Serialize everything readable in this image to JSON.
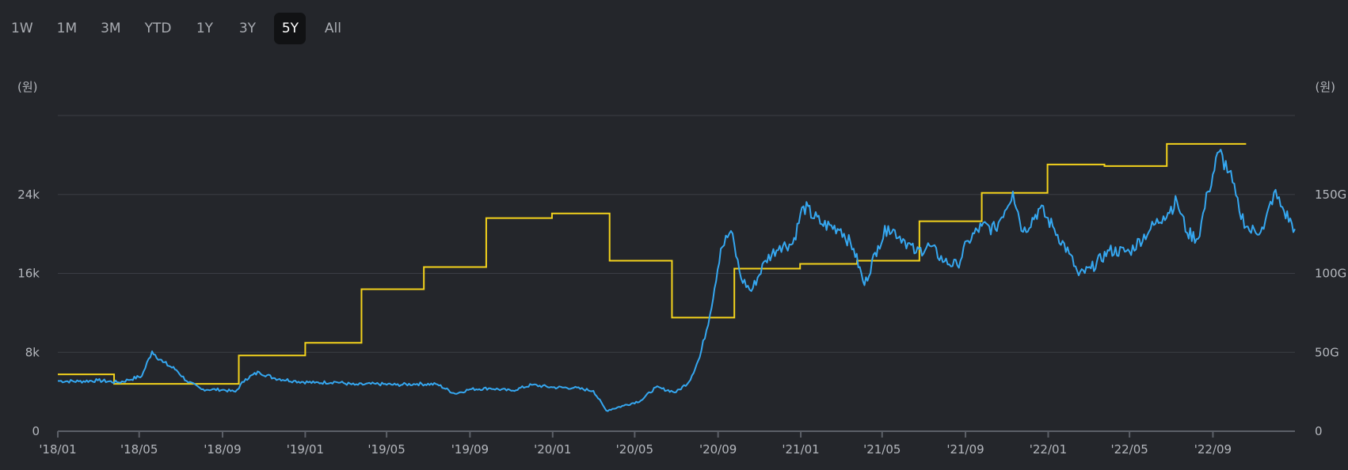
{
  "range_buttons": [
    {
      "label": "1W",
      "active": false
    },
    {
      "label": "1M",
      "active": false
    },
    {
      "label": "3M",
      "active": false
    },
    {
      "label": "YTD",
      "active": false
    },
    {
      "label": "1Y",
      "active": false
    },
    {
      "label": "3Y",
      "active": false
    },
    {
      "label": "5Y",
      "active": true
    },
    {
      "label": "All",
      "active": false
    }
  ],
  "chart_data": {
    "type": "line",
    "left_unit": "(원)",
    "right_unit": "(원)",
    "y_left": {
      "min": 0,
      "max": 32000,
      "ticks": [
        0,
        8000,
        16000,
        24000
      ],
      "tick_labels": [
        "0",
        "8k",
        "16k",
        "24k"
      ]
    },
    "y_right": {
      "min": 0,
      "max": 200,
      "ticks": [
        0,
        50,
        100,
        150
      ],
      "tick_labels": [
        "0",
        "50G",
        "100G",
        "150G"
      ]
    },
    "x_range": [
      "2018-01",
      "2022-12-31"
    ],
    "x_ticks": [
      "2018-01",
      "2018-05",
      "2018-09",
      "2019-01",
      "2019-05",
      "2019-09",
      "2020-01",
      "2020-05",
      "2020-09",
      "2021-01",
      "2021-05",
      "2021-09",
      "2022-01",
      "2022-05",
      "2022-09"
    ],
    "x_tick_labels": [
      "'18/01",
      "'18/05",
      "'18/09",
      "'19/01",
      "'19/05",
      "'19/09",
      "'20/01",
      "'20/05",
      "'20/09",
      "'21/01",
      "'21/05",
      "'21/09",
      "'22/01",
      "'22/05",
      "'22/09"
    ],
    "grid": true,
    "colors": {
      "price": "#35a7f0",
      "step": "#f3d21c",
      "grid": "#3b3e45",
      "axis": "#5c6068"
    },
    "series": [
      {
        "axis": "left",
        "color": "#35a7f0",
        "points": [
          [
            "2018-01-01",
            5100
          ],
          [
            "2018-02-01",
            5050
          ],
          [
            "2018-03-01",
            5150
          ],
          [
            "2018-04-01",
            4950
          ],
          [
            "2018-04-15",
            5200
          ],
          [
            "2018-05-05",
            5600
          ],
          [
            "2018-05-20",
            8100
          ],
          [
            "2018-06-05",
            7000
          ],
          [
            "2018-06-25",
            6200
          ],
          [
            "2018-07-10",
            5100
          ],
          [
            "2018-08-01",
            4250
          ],
          [
            "2018-09-01",
            4200
          ],
          [
            "2018-09-20",
            4000
          ],
          [
            "2018-10-05",
            5300
          ],
          [
            "2018-10-25",
            6000
          ],
          [
            "2018-11-15",
            5400
          ],
          [
            "2018-12-15",
            5100
          ],
          [
            "2019-01-15",
            4900
          ],
          [
            "2019-02-15",
            5000
          ],
          [
            "2019-03-15",
            4700
          ],
          [
            "2019-04-15",
            4800
          ],
          [
            "2019-05-15",
            4700
          ],
          [
            "2019-06-15",
            4800
          ],
          [
            "2019-07-15",
            4750
          ],
          [
            "2019-08-10",
            3800
          ],
          [
            "2019-09-01",
            4250
          ],
          [
            "2019-10-01",
            4350
          ],
          [
            "2019-11-01",
            4100
          ],
          [
            "2019-12-01",
            4700
          ],
          [
            "2020-01-01",
            4450
          ],
          [
            "2020-02-01",
            4400
          ],
          [
            "2020-03-01",
            4100
          ],
          [
            "2020-03-20",
            2100
          ],
          [
            "2020-04-15",
            2600
          ],
          [
            "2020-05-10",
            3100
          ],
          [
            "2020-06-01",
            4450
          ],
          [
            "2020-07-01",
            3950
          ],
          [
            "2020-07-20",
            5000
          ],
          [
            "2020-08-05",
            7500
          ],
          [
            "2020-08-20",
            11800
          ],
          [
            "2020-09-05",
            18500
          ],
          [
            "2020-09-20",
            20300
          ],
          [
            "2020-10-05",
            15500
          ],
          [
            "2020-10-20",
            14200
          ],
          [
            "2020-11-10",
            17300
          ],
          [
            "2020-12-01",
            18800
          ],
          [
            "2020-12-20",
            19000
          ],
          [
            "2021-01-05",
            22800
          ],
          [
            "2021-02-01",
            21000
          ],
          [
            "2021-03-01",
            20500
          ],
          [
            "2021-03-20",
            18500
          ],
          [
            "2021-04-05",
            14800
          ],
          [
            "2021-04-25",
            18800
          ],
          [
            "2021-05-10",
            20800
          ],
          [
            "2021-06-01",
            19500
          ],
          [
            "2021-06-20",
            18100
          ],
          [
            "2021-07-10",
            18800
          ],
          [
            "2021-08-01",
            17200
          ],
          [
            "2021-08-20",
            16800
          ],
          [
            "2021-09-05",
            19300
          ],
          [
            "2021-09-25",
            20800
          ],
          [
            "2021-10-15",
            20500
          ],
          [
            "2021-11-10",
            24300
          ],
          [
            "2021-11-25",
            20200
          ],
          [
            "2021-12-20",
            22600
          ],
          [
            "2022-01-10",
            20500
          ],
          [
            "2022-02-01",
            18000
          ],
          [
            "2022-02-15",
            15800
          ],
          [
            "2022-03-05",
            16500
          ],
          [
            "2022-04-01",
            18300
          ],
          [
            "2022-05-01",
            18200
          ],
          [
            "2022-06-01",
            20500
          ],
          [
            "2022-06-20",
            21800
          ],
          [
            "2022-07-10",
            23300
          ],
          [
            "2022-07-25",
            20100
          ],
          [
            "2022-08-10",
            19500
          ],
          [
            "2022-08-25",
            24300
          ],
          [
            "2022-09-10",
            28300
          ],
          [
            "2022-09-25",
            26300
          ],
          [
            "2022-10-10",
            22300
          ],
          [
            "2022-10-25",
            20300
          ],
          [
            "2022-11-15",
            20500
          ],
          [
            "2022-11-30",
            24200
          ],
          [
            "2022-12-15",
            22300
          ],
          [
            "2022-12-31",
            20500
          ]
        ]
      },
      {
        "axis": "right",
        "color": "#f3d21c",
        "steps": [
          [
            "2018-01-01",
            36
          ],
          [
            "2018-03-25",
            30
          ],
          [
            "2018-09-25",
            48
          ],
          [
            "2019-01-01",
            56
          ],
          [
            "2019-03-25",
            90
          ],
          [
            "2019-06-25",
            104
          ],
          [
            "2019-09-25",
            135
          ],
          [
            "2019-12-31",
            138
          ],
          [
            "2020-03-25",
            108
          ],
          [
            "2020-06-25",
            72
          ],
          [
            "2020-09-25",
            103
          ],
          [
            "2020-12-31",
            106
          ],
          [
            "2021-03-25",
            108
          ],
          [
            "2021-06-25",
            133
          ],
          [
            "2021-09-25",
            151
          ],
          [
            "2021-12-31",
            169
          ],
          [
            "2022-03-25",
            168
          ],
          [
            "2022-06-25",
            182
          ]
        ],
        "end": "2022-10-20"
      }
    ]
  }
}
